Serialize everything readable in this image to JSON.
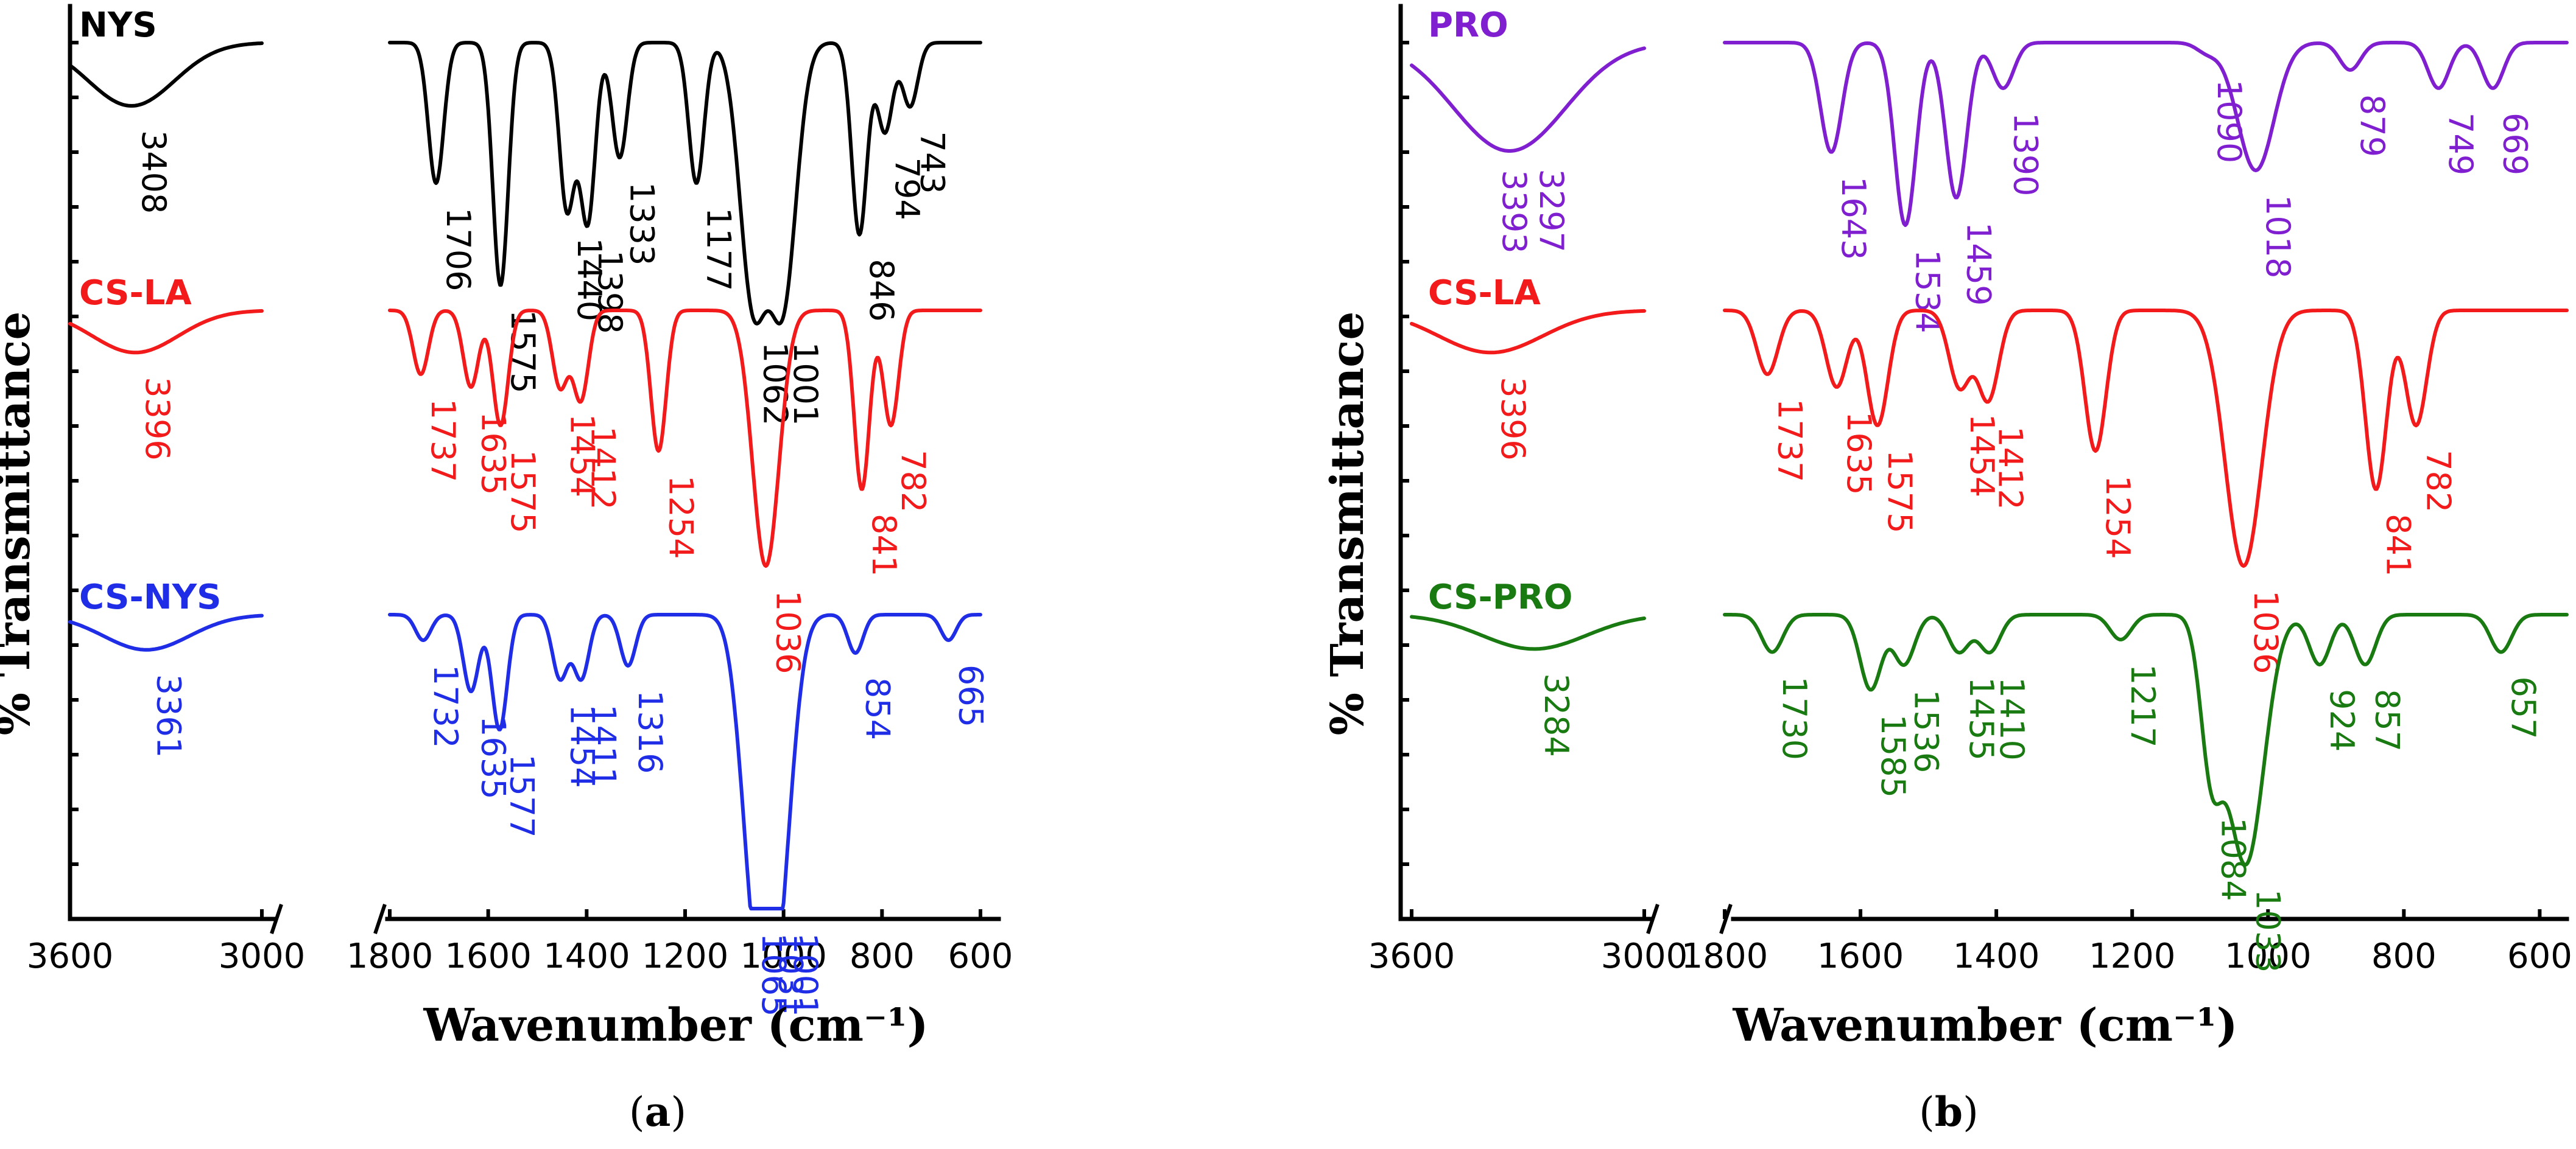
{
  "colors": {
    "NYS": "#000000",
    "PRO": "#7f1fd0",
    "CS-LA": "#f21a1a",
    "CS-NYS": "#1f2ee6",
    "CS-PRO": "#1a7a12"
  },
  "chart_data": [
    {
      "type": "line",
      "panel_label": "a",
      "xlabel": "Wavenumber (cm⁻¹)",
      "ylabel": "% Transmittance",
      "x_ticks_left": [
        3600,
        3000
      ],
      "x_ticks_right": [
        1800,
        1600,
        1400,
        1200,
        1000,
        800,
        600
      ],
      "x_ticks_left_labels": [
        "3600",
        "3000"
      ],
      "x_ticks_right_labels": [
        "1800",
        "1600",
        "1400",
        "1200",
        "1000",
        "800",
        "600"
      ],
      "xlim_left": [
        3600,
        3000
      ],
      "xlim_right": [
        1800,
        600
      ],
      "series": [
        {
          "name": "NYS",
          "color": "#000000",
          "label": "NYS",
          "peaks": [
            {
              "text": "3408",
              "x": 3408,
              "depth": 0.45
            },
            {
              "text": "1706",
              "x": 1706,
              "depth": 0.55
            },
            {
              "text": "1575",
              "x": 1575,
              "depth": 0.95
            },
            {
              "text": "1440",
              "x": 1440,
              "depth": 0.65
            },
            {
              "text": "1398",
              "x": 1398,
              "depth": 0.7
            },
            {
              "text": "1333",
              "x": 1333,
              "depth": 0.45
            },
            {
              "text": "1177",
              "x": 1177,
              "depth": 0.55
            },
            {
              "text": "1062",
              "x": 1062,
              "depth": 1.0
            },
            {
              "text": "1001",
              "x": 1001,
              "depth": 1.0
            },
            {
              "text": "846",
              "x": 846,
              "depth": 0.75
            },
            {
              "text": "794",
              "x": 794,
              "depth": 0.35
            },
            {
              "text": "743",
              "x": 743,
              "depth": 0.25
            }
          ]
        },
        {
          "name": "CS-LA",
          "color": "#f21a1a",
          "label": "CS-LA",
          "peaks": [
            {
              "text": "3396",
              "x": 3396,
              "depth": 0.3
            },
            {
              "text": "1737",
              "x": 1737,
              "depth": 0.25
            },
            {
              "text": "1635",
              "x": 1635,
              "depth": 0.3
            },
            {
              "text": "1575",
              "x": 1575,
              "depth": 0.45
            },
            {
              "text": "1454",
              "x": 1454,
              "depth": 0.3
            },
            {
              "text": "1412",
              "x": 1412,
              "depth": 0.35
            },
            {
              "text": "1254",
              "x": 1254,
              "depth": 0.55
            },
            {
              "text": "1036",
              "x": 1036,
              "depth": 1.0
            },
            {
              "text": "841",
              "x": 841,
              "depth": 0.7
            },
            {
              "text": "782",
              "x": 782,
              "depth": 0.45
            }
          ]
        },
        {
          "name": "CS-NYS",
          "color": "#1f2ee6",
          "label": "CS-NYS",
          "peaks": [
            {
              "text": "3361",
              "x": 3361,
              "depth": 0.25
            },
            {
              "text": "1732",
              "x": 1732,
              "depth": 0.1
            },
            {
              "text": "1635",
              "x": 1635,
              "depth": 0.3
            },
            {
              "text": "1577",
              "x": 1577,
              "depth": 0.45
            },
            {
              "text": "1454",
              "x": 1454,
              "depth": 0.25
            },
            {
              "text": "1411",
              "x": 1411,
              "depth": 0.25
            },
            {
              "text": "1316",
              "x": 1316,
              "depth": 0.2
            },
            {
              "text": "1065",
              "x": 1065,
              "depth": 0.75
            },
            {
              "text": "1031",
              "x": 1031,
              "depth": 0.95
            },
            {
              "text": "1001",
              "x": 1001,
              "depth": 0.6
            },
            {
              "text": "854",
              "x": 854,
              "depth": 0.15
            },
            {
              "text": "665",
              "x": 665,
              "depth": 0.1
            }
          ]
        }
      ]
    },
    {
      "type": "line",
      "panel_label": "b",
      "xlabel": "Wavenumber (cm⁻¹)",
      "ylabel": "% Transmittance",
      "x_ticks_left": [
        3600,
        3000
      ],
      "x_ticks_right": [
        1800,
        1600,
        1400,
        1200,
        1000,
        800,
        600
      ],
      "x_ticks_left_labels": [
        "3600",
        "3000"
      ],
      "x_ticks_right_labels": [
        "1800",
        "1600",
        "1400",
        "1200",
        "1000",
        "800",
        "600"
      ],
      "xlim_left": [
        3600,
        3000
      ],
      "xlim_right": [
        1800,
        560
      ],
      "series": [
        {
          "name": "PRO",
          "color": "#7f1fd0",
          "label": "PRO",
          "peaks": [
            {
              "text": "3393",
              "x": 3393,
              "depth": 0.6
            },
            {
              "text": "3297",
              "x": 3297,
              "depth": 0.55
            },
            {
              "text": "1643",
              "x": 1643,
              "depth": 0.6
            },
            {
              "text": "1534",
              "x": 1534,
              "depth": 1.0
            },
            {
              "text": "1459",
              "x": 1459,
              "depth": 0.85
            },
            {
              "text": "1390",
              "x": 1390,
              "depth": 0.25
            },
            {
              "text": "1090",
              "x": 1090,
              "depth": 0.05
            },
            {
              "text": "1018",
              "x": 1018,
              "depth": 0.7
            },
            {
              "text": "879",
              "x": 879,
              "depth": 0.15
            },
            {
              "text": "749",
              "x": 749,
              "depth": 0.25
            },
            {
              "text": "669",
              "x": 669,
              "depth": 0.25
            }
          ]
        },
        {
          "name": "CS-LA",
          "color": "#f21a1a",
          "label": "CS-LA",
          "peaks": [
            {
              "text": "3396",
              "x": 3396,
              "depth": 0.3
            },
            {
              "text": "1737",
              "x": 1737,
              "depth": 0.25
            },
            {
              "text": "1635",
              "x": 1635,
              "depth": 0.3
            },
            {
              "text": "1575",
              "x": 1575,
              "depth": 0.45
            },
            {
              "text": "1454",
              "x": 1454,
              "depth": 0.3
            },
            {
              "text": "1412",
              "x": 1412,
              "depth": 0.35
            },
            {
              "text": "1254",
              "x": 1254,
              "depth": 0.55
            },
            {
              "text": "1036",
              "x": 1036,
              "depth": 1.0
            },
            {
              "text": "841",
              "x": 841,
              "depth": 0.7
            },
            {
              "text": "782",
              "x": 782,
              "depth": 0.45
            }
          ]
        },
        {
          "name": "CS-PRO",
          "color": "#1a7a12",
          "label": "CS-PRO",
          "peaks": [
            {
              "text": "3284",
              "x": 3284,
              "depth": 0.25
            },
            {
              "text": "1730",
              "x": 1730,
              "depth": 0.15
            },
            {
              "text": "1585",
              "x": 1585,
              "depth": 0.3
            },
            {
              "text": "1536",
              "x": 1536,
              "depth": 0.2
            },
            {
              "text": "1455",
              "x": 1455,
              "depth": 0.15
            },
            {
              "text": "1410",
              "x": 1410,
              "depth": 0.15
            },
            {
              "text": "1217",
              "x": 1217,
              "depth": 0.1
            },
            {
              "text": "1084",
              "x": 1084,
              "depth": 0.55
            },
            {
              "text": "1033",
              "x": 1033,
              "depth": 1.0
            },
            {
              "text": "924",
              "x": 924,
              "depth": 0.2
            },
            {
              "text": "857",
              "x": 857,
              "depth": 0.2
            },
            {
              "text": "657",
              "x": 657,
              "depth": 0.15
            }
          ]
        }
      ]
    }
  ]
}
